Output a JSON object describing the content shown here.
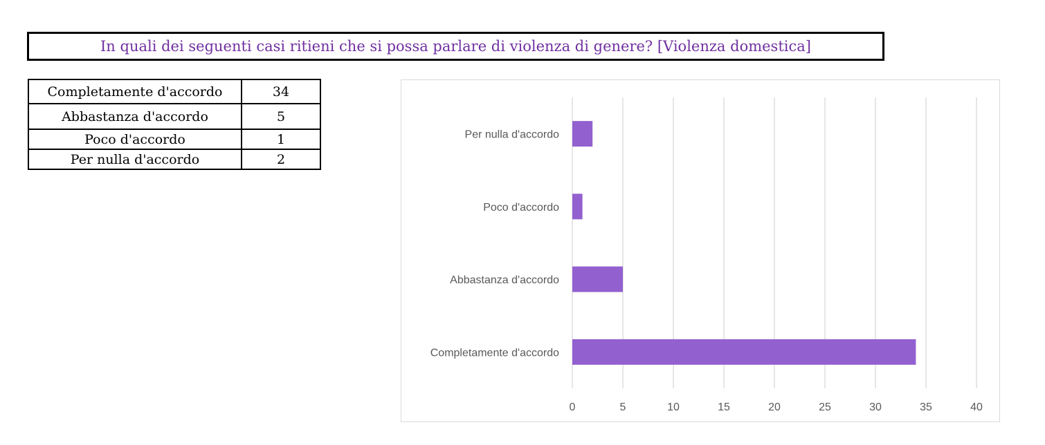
{
  "title": "In quali dei seguenti casi ritieni che si possa parlare di violenza di genere? [Violenza domestica]",
  "table": [
    {
      "label": "Completamente d'accordo",
      "value": "34"
    },
    {
      "label": "Abbastanza d'accordo",
      "value": "5"
    },
    {
      "label": "Poco d'accordo",
      "value": "1"
    },
    {
      "label": "Per nulla d'accordo",
      "value": "2"
    }
  ],
  "colors": {
    "title": "#7030a0",
    "bar": "#9360cf",
    "grid": "#d9d9d9",
    "axis_text": "#595959"
  },
  "chart_data": {
    "type": "bar",
    "orientation": "horizontal",
    "categories": [
      "Completamente d'accordo",
      "Abbastanza d'accordo",
      "Poco d'accordo",
      "Per nulla d'accordo"
    ],
    "values": [
      34,
      5,
      1,
      2
    ],
    "xlim": [
      0,
      40
    ],
    "xticks": [
      0,
      5,
      10,
      15,
      20,
      25,
      30,
      35,
      40
    ],
    "grid": "vertical",
    "legend": "none"
  }
}
